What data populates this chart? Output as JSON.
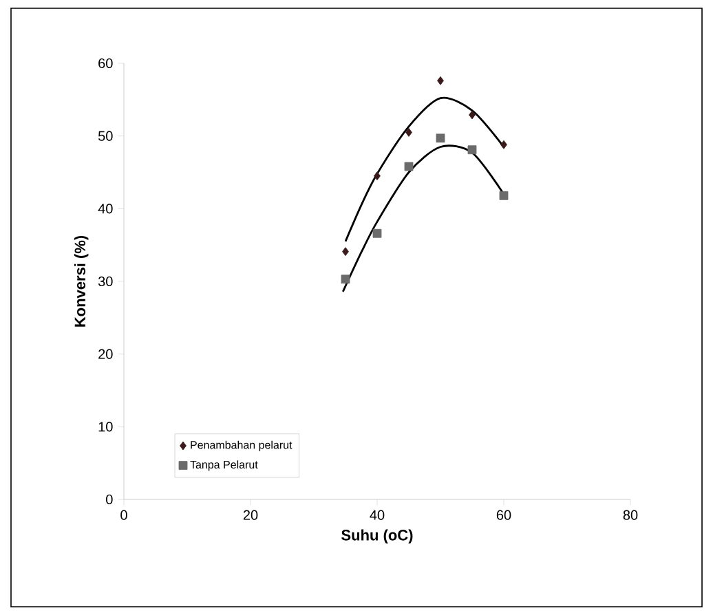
{
  "chart_data": {
    "type": "scatter",
    "xlabel": "Suhu (oC)",
    "ylabel": "Konversi (%)",
    "xlim": [
      0,
      80
    ],
    "xticks": [
      0,
      20,
      40,
      60,
      80
    ],
    "ylim": [
      0,
      60
    ],
    "yticks": [
      0,
      10,
      20,
      30,
      40,
      50,
      60
    ],
    "grid": false,
    "legend": "bottom left",
    "series": [
      {
        "name": "Penambahan pelarut",
        "color": "#3a1a1a",
        "marker": "diamond",
        "x": [
          35,
          40,
          45,
          50,
          55,
          60
        ],
        "values": [
          34.1,
          44.5,
          50.5,
          57.6,
          52.9,
          48.8
        ]
      },
      {
        "name": "Tanpa Pelarut",
        "color": "#6b6b6b",
        "marker": "square",
        "x": [
          35,
          40,
          45,
          50,
          55,
          60
        ],
        "values": [
          30.3,
          36.6,
          45.8,
          49.7,
          48.1,
          41.8
        ]
      },
      {
        "type": "line",
        "color": "#000000",
        "marker": "none",
        "x": [
          35,
          37.5,
          40,
          45,
          50,
          55,
          60
        ],
        "values": [
          35.5,
          40.5,
          44.8,
          51.3,
          55.2,
          53.5,
          48.5
        ]
      },
      {
        "type": "line",
        "color": "#000000",
        "marker": "none",
        "x": [
          34.6,
          37.5,
          40,
          45,
          50,
          55,
          60
        ],
        "values": [
          28.6,
          34.0,
          38.2,
          45.0,
          48.5,
          47.7,
          42.0
        ]
      }
    ]
  }
}
